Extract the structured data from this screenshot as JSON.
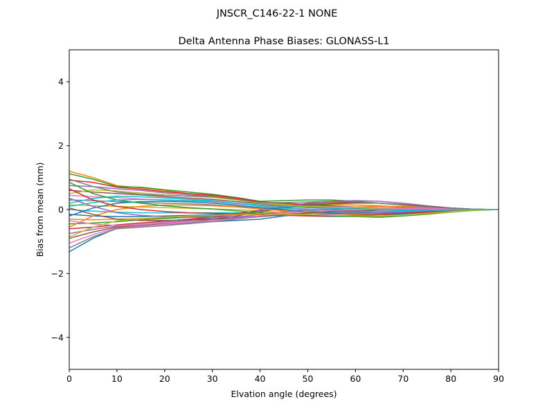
{
  "figure": {
    "suptitle": "JNSCR_C146-22-1 NONE"
  },
  "chart_data": {
    "type": "line",
    "title": "Delta Antenna Phase Biases: GLONASS-L1",
    "xlabel": "Elvation angle (degrees)",
    "ylabel": "Bias from mean (mm)",
    "xlim": [
      0,
      90
    ],
    "ylim": [
      -5,
      5
    ],
    "xticks": [
      0,
      10,
      20,
      30,
      40,
      50,
      60,
      70,
      80,
      90
    ],
    "yticks": [
      -4,
      -2,
      0,
      2,
      4
    ],
    "ytick_labels": [
      "−4",
      "−2",
      "0",
      "2",
      "4"
    ],
    "grid": false,
    "legend": "none",
    "x": [
      0,
      5,
      10,
      15,
      20,
      25,
      30,
      35,
      40,
      45,
      50,
      55,
      60,
      65,
      70,
      75,
      80,
      85,
      90
    ],
    "series": [
      {
        "color": "#1f77b4",
        "values": [
          -1.32,
          -0.9,
          -0.58,
          -0.5,
          -0.46,
          -0.42,
          -0.38,
          -0.34,
          -0.3,
          -0.2,
          -0.12,
          -0.1,
          -0.1,
          -0.1,
          -0.08,
          -0.05,
          -0.02,
          0.0,
          0.0
        ]
      },
      {
        "color": "#ff7f0e",
        "values": [
          1.2,
          1.0,
          0.75,
          0.68,
          0.6,
          0.5,
          0.42,
          0.33,
          0.22,
          0.18,
          0.15,
          0.16,
          0.14,
          0.12,
          0.08,
          0.05,
          0.02,
          0.0,
          0.0
        ]
      },
      {
        "color": "#2ca02c",
        "values": [
          1.12,
          0.95,
          0.72,
          0.7,
          0.62,
          0.55,
          0.48,
          0.38,
          0.26,
          0.28,
          0.3,
          0.3,
          0.26,
          0.2,
          0.14,
          0.08,
          0.03,
          0.0,
          0.0
        ]
      },
      {
        "color": "#d62728",
        "values": [
          0.92,
          0.85,
          0.7,
          0.64,
          0.56,
          0.5,
          0.45,
          0.36,
          0.24,
          0.2,
          0.16,
          0.12,
          0.08,
          0.04,
          0.02,
          0.0,
          0.0,
          0.0,
          0.0
        ]
      },
      {
        "color": "#9467bd",
        "values": [
          0.75,
          0.72,
          0.65,
          0.6,
          0.52,
          0.46,
          0.4,
          0.3,
          0.2,
          0.15,
          0.12,
          0.1,
          0.08,
          0.06,
          0.04,
          0.02,
          0.0,
          0.0,
          0.0
        ]
      },
      {
        "color": "#8c564b",
        "values": [
          0.6,
          0.55,
          0.5,
          0.46,
          0.4,
          0.36,
          0.32,
          0.25,
          0.18,
          0.12,
          0.08,
          0.05,
          0.02,
          0.0,
          -0.02,
          -0.02,
          -0.01,
          0.0,
          0.0
        ]
      },
      {
        "color": "#e377c2",
        "values": [
          0.45,
          0.4,
          0.38,
          0.33,
          0.3,
          0.27,
          0.24,
          0.18,
          0.12,
          0.06,
          0.02,
          -0.02,
          -0.05,
          -0.06,
          -0.06,
          -0.05,
          -0.03,
          -0.01,
          0.0
        ]
      },
      {
        "color": "#7f7f7f",
        "values": [
          0.3,
          0.28,
          0.25,
          0.22,
          0.2,
          0.18,
          0.15,
          0.1,
          0.05,
          -0.02,
          -0.08,
          -0.12,
          -0.15,
          -0.16,
          -0.14,
          -0.1,
          -0.05,
          -0.02,
          0.0
        ]
      },
      {
        "color": "#bcbd22",
        "values": [
          0.15,
          0.12,
          0.1,
          0.08,
          0.06,
          0.04,
          0.02,
          0.0,
          -0.04,
          -0.1,
          -0.15,
          -0.18,
          -0.2,
          -0.22,
          -0.2,
          -0.15,
          -0.08,
          -0.03,
          0.0
        ]
      },
      {
        "color": "#17becf",
        "values": [
          0.0,
          -0.05,
          -0.08,
          -0.1,
          -0.1,
          -0.1,
          -0.1,
          -0.1,
          -0.12,
          -0.16,
          -0.2,
          -0.22,
          -0.22,
          -0.2,
          -0.16,
          -0.12,
          -0.06,
          -0.02,
          0.0
        ]
      },
      {
        "color": "#1f77b4",
        "values": [
          -0.15,
          -0.2,
          -0.22,
          -0.22,
          -0.2,
          -0.18,
          -0.16,
          -0.14,
          -0.12,
          -0.08,
          -0.04,
          0.0,
          0.04,
          0.06,
          0.06,
          0.04,
          0.02,
          0.0,
          0.0
        ]
      },
      {
        "color": "#ff7f0e",
        "values": [
          -0.3,
          -0.32,
          -0.3,
          -0.28,
          -0.26,
          -0.22,
          -0.2,
          -0.16,
          -0.12,
          -0.08,
          -0.02,
          0.04,
          0.08,
          0.1,
          0.1,
          0.08,
          0.04,
          0.01,
          0.0
        ]
      },
      {
        "color": "#2ca02c",
        "values": [
          -0.45,
          -0.42,
          -0.38,
          -0.32,
          -0.28,
          -0.24,
          -0.2,
          -0.12,
          -0.04,
          0.05,
          0.12,
          0.18,
          0.2,
          0.2,
          0.16,
          0.1,
          0.05,
          0.01,
          0.0
        ]
      },
      {
        "color": "#d62728",
        "values": [
          -0.6,
          -0.55,
          -0.48,
          -0.42,
          -0.36,
          -0.3,
          -0.24,
          -0.14,
          -0.02,
          0.1,
          0.2,
          0.24,
          0.24,
          0.2,
          0.15,
          0.1,
          0.05,
          0.01,
          0.0
        ]
      },
      {
        "color": "#9467bd",
        "values": [
          -0.75,
          -0.62,
          -0.52,
          -0.46,
          -0.4,
          -0.34,
          -0.26,
          -0.16,
          -0.04,
          0.08,
          0.18,
          0.26,
          0.28,
          0.26,
          0.2,
          0.12,
          0.05,
          0.01,
          0.0
        ]
      },
      {
        "color": "#8c564b",
        "values": [
          -0.9,
          -0.7,
          -0.55,
          -0.5,
          -0.44,
          -0.38,
          -0.3,
          -0.2,
          -0.08,
          0.06,
          0.16,
          0.2,
          0.22,
          0.2,
          0.16,
          0.1,
          0.05,
          0.01,
          0.0
        ]
      },
      {
        "color": "#e377c2",
        "values": [
          -1.05,
          -0.78,
          -0.58,
          -0.52,
          -0.46,
          -0.4,
          -0.34,
          -0.24,
          -0.14,
          -0.06,
          0.0,
          0.04,
          0.06,
          0.06,
          0.05,
          0.04,
          0.02,
          0.0,
          0.0
        ]
      },
      {
        "color": "#7f7f7f",
        "values": [
          -1.2,
          -0.85,
          -0.6,
          -0.55,
          -0.5,
          -0.44,
          -0.38,
          -0.3,
          -0.22,
          -0.16,
          -0.12,
          -0.1,
          -0.08,
          -0.06,
          -0.04,
          -0.02,
          -0.01,
          0.0,
          0.0
        ]
      },
      {
        "color": "#bcbd22",
        "values": [
          0.5,
          0.62,
          0.58,
          0.52,
          0.46,
          0.42,
          0.38,
          0.3,
          0.2,
          0.14,
          0.1,
          0.08,
          0.06,
          0.04,
          0.02,
          0.01,
          0.0,
          0.0,
          0.0
        ]
      },
      {
        "color": "#17becf",
        "values": [
          0.2,
          0.35,
          0.42,
          0.4,
          0.36,
          0.32,
          0.28,
          0.2,
          0.1,
          0.04,
          0.0,
          -0.04,
          -0.06,
          -0.06,
          -0.05,
          -0.03,
          -0.02,
          0.0,
          0.0
        ]
      },
      {
        "color": "#1f77b4",
        "values": [
          -0.2,
          0.05,
          0.2,
          0.25,
          0.26,
          0.24,
          0.2,
          0.14,
          0.06,
          0.0,
          -0.06,
          -0.1,
          -0.12,
          -0.12,
          -0.1,
          -0.06,
          -0.03,
          -0.01,
          0.0
        ]
      },
      {
        "color": "#ff7f0e",
        "values": [
          -0.55,
          -0.2,
          0.0,
          0.1,
          0.14,
          0.14,
          0.12,
          0.08,
          0.02,
          -0.04,
          -0.1,
          -0.14,
          -0.16,
          -0.16,
          -0.12,
          -0.08,
          -0.04,
          -0.01,
          0.0
        ]
      },
      {
        "color": "#2ca02c",
        "values": [
          0.85,
          0.5,
          0.3,
          0.2,
          0.12,
          0.06,
          0.02,
          -0.04,
          -0.1,
          -0.14,
          -0.18,
          -0.2,
          -0.22,
          -0.24,
          -0.2,
          -0.14,
          -0.07,
          -0.02,
          0.0
        ]
      },
      {
        "color": "#d62728",
        "values": [
          0.65,
          0.3,
          0.1,
          0.0,
          -0.06,
          -0.1,
          -0.12,
          -0.14,
          -0.16,
          -0.18,
          -0.2,
          -0.2,
          -0.18,
          -0.16,
          -0.12,
          -0.08,
          -0.04,
          -0.01,
          0.0
        ]
      },
      {
        "color": "#9467bd",
        "values": [
          0.35,
          0.1,
          -0.1,
          -0.18,
          -0.22,
          -0.24,
          -0.24,
          -0.22,
          -0.2,
          -0.18,
          -0.16,
          -0.14,
          -0.12,
          -0.1,
          -0.08,
          -0.05,
          -0.02,
          0.0,
          0.0
        ]
      },
      {
        "color": "#8c564b",
        "values": [
          0.05,
          -0.15,
          -0.3,
          -0.34,
          -0.34,
          -0.32,
          -0.3,
          -0.26,
          -0.22,
          -0.16,
          -0.1,
          -0.06,
          -0.04,
          -0.02,
          0.0,
          0.0,
          0.0,
          0.0,
          0.0
        ]
      },
      {
        "color": "#e377c2",
        "values": [
          -0.35,
          -0.45,
          -0.5,
          -0.46,
          -0.42,
          -0.38,
          -0.34,
          -0.28,
          -0.2,
          -0.12,
          -0.06,
          -0.02,
          0.0,
          0.02,
          0.02,
          0.02,
          0.01,
          0.0,
          0.0
        ]
      },
      {
        "color": "#7f7f7f",
        "values": [
          0.95,
          0.72,
          0.55,
          0.48,
          0.44,
          0.42,
          0.4,
          0.32,
          0.22,
          0.22,
          0.24,
          0.26,
          0.24,
          0.2,
          0.14,
          0.08,
          0.04,
          0.01,
          0.0
        ]
      },
      {
        "color": "#bcbd22",
        "values": [
          -0.85,
          -0.55,
          -0.35,
          -0.28,
          -0.24,
          -0.2,
          -0.18,
          -0.16,
          -0.14,
          -0.14,
          -0.16,
          -0.18,
          -0.2,
          -0.2,
          -0.18,
          -0.12,
          -0.06,
          -0.02,
          0.0
        ]
      },
      {
        "color": "#17becf",
        "values": [
          0.1,
          0.22,
          0.3,
          0.32,
          0.3,
          0.28,
          0.26,
          0.2,
          0.14,
          0.1,
          0.06,
          0.04,
          0.02,
          0.0,
          -0.02,
          -0.02,
          -0.01,
          0.0,
          0.0
        ]
      }
    ]
  }
}
